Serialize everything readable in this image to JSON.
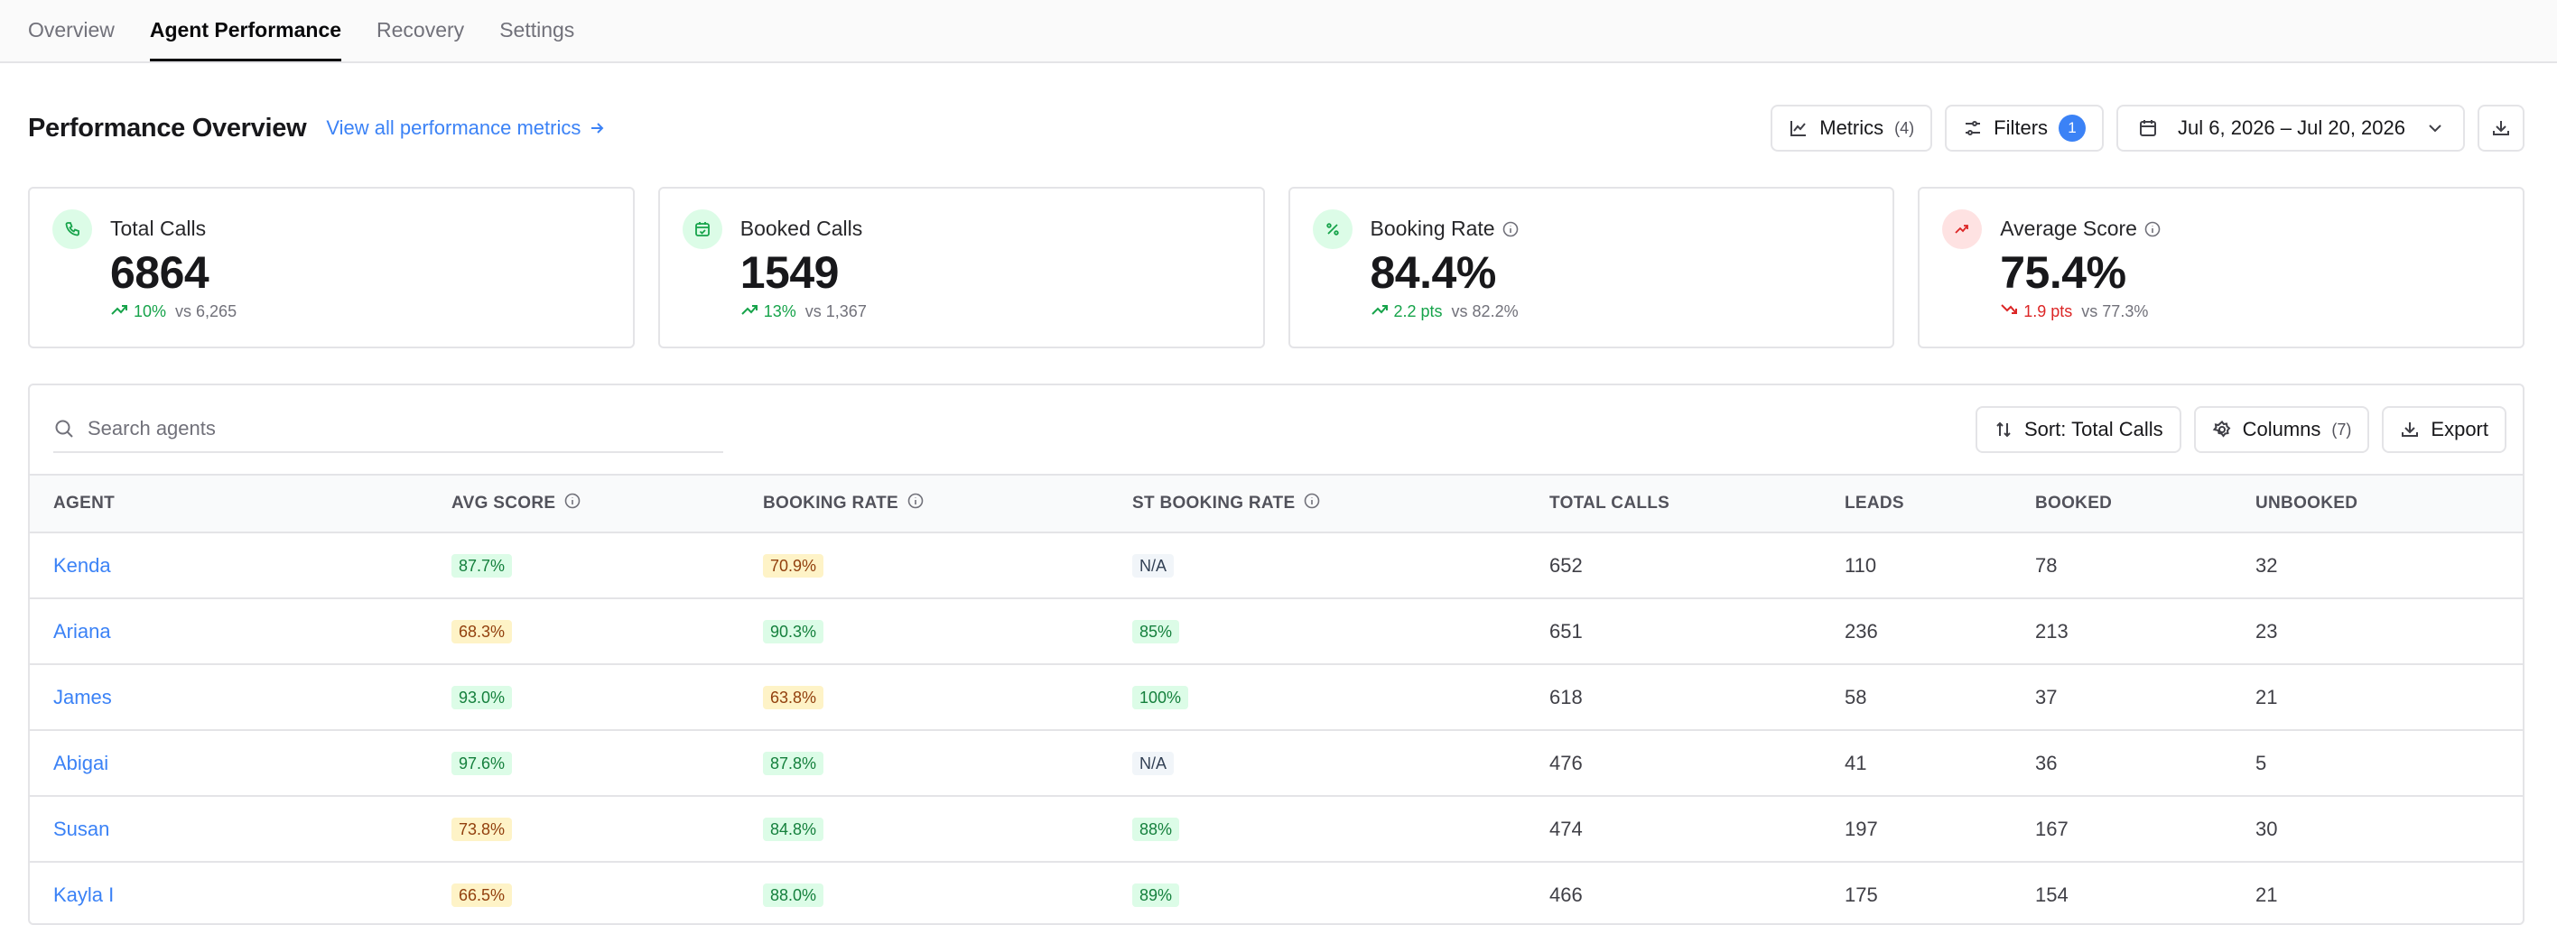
{
  "tabs": [
    {
      "label": "Overview",
      "active": false
    },
    {
      "label": "Agent Performance",
      "active": true
    },
    {
      "label": "Recovery",
      "active": false
    },
    {
      "label": "Settings",
      "active": false
    }
  ],
  "header": {
    "title": "Performance Overview",
    "view_all_link": "View all performance metrics",
    "metrics_label": "Metrics",
    "metrics_count": "(4)",
    "filters_label": "Filters",
    "filters_count": "1",
    "date_range": "Jul 6, 2026 – Jul 20, 2026"
  },
  "cards": [
    {
      "label": "Total Calls",
      "value": "6864",
      "delta": "10%",
      "compare": "vs 6,265",
      "trend": "up",
      "icon": "phone-icon",
      "has_info": false
    },
    {
      "label": "Booked Calls",
      "value": "1549",
      "delta": "13%",
      "compare": "vs 1,367",
      "trend": "up",
      "icon": "calendar-check-icon",
      "has_info": false
    },
    {
      "label": "Booking Rate",
      "value": "84.4%",
      "delta": "2.2 pts",
      "compare": "vs 82.2%",
      "trend": "up",
      "icon": "percent-icon",
      "has_info": true
    },
    {
      "label": "Average Score",
      "value": "75.4%",
      "delta": "1.9 pts",
      "compare": "vs 77.3%",
      "trend": "down",
      "icon": "trend-up-icon",
      "has_info": true
    }
  ],
  "table": {
    "search_placeholder": "Search agents",
    "sort_label": "Sort: Total Calls",
    "columns_label": "Columns",
    "columns_count": "(7)",
    "export_label": "Export",
    "headers": [
      "AGENT",
      "AVG SCORE",
      "BOOKING RATE",
      "ST BOOKING RATE",
      "TOTAL CALLS",
      "LEADS",
      "BOOKED",
      "UNBOOKED"
    ],
    "rows": [
      {
        "agent": "Kenda",
        "avg_score": "87.7%",
        "avg_score_tone": "green",
        "booking_rate": "70.9%",
        "booking_rate_tone": "yellow",
        "st_booking_rate": "N/A",
        "st_tone": "gray",
        "total_calls": "652",
        "leads": "110",
        "booked": "78",
        "unbooked": "32"
      },
      {
        "agent": "Ariana",
        "avg_score": "68.3%",
        "avg_score_tone": "yellow",
        "booking_rate": "90.3%",
        "booking_rate_tone": "green",
        "st_booking_rate": "85%",
        "st_tone": "green",
        "total_calls": "651",
        "leads": "236",
        "booked": "213",
        "unbooked": "23"
      },
      {
        "agent": "James",
        "avg_score": "93.0%",
        "avg_score_tone": "green",
        "booking_rate": "63.8%",
        "booking_rate_tone": "yellow",
        "st_booking_rate": "100%",
        "st_tone": "green",
        "total_calls": "618",
        "leads": "58",
        "booked": "37",
        "unbooked": "21"
      },
      {
        "agent": "Abigai",
        "avg_score": "97.6%",
        "avg_score_tone": "green",
        "booking_rate": "87.8%",
        "booking_rate_tone": "green",
        "st_booking_rate": "N/A",
        "st_tone": "gray",
        "total_calls": "476",
        "leads": "41",
        "booked": "36",
        "unbooked": "5"
      },
      {
        "agent": "Susan",
        "avg_score": "73.8%",
        "avg_score_tone": "yellow",
        "booking_rate": "84.8%",
        "booking_rate_tone": "green",
        "st_booking_rate": "88%",
        "st_tone": "green",
        "total_calls": "474",
        "leads": "197",
        "booked": "167",
        "unbooked": "30"
      },
      {
        "agent": "Kayla I",
        "avg_score": "66.5%",
        "avg_score_tone": "yellow",
        "booking_rate": "88.0%",
        "booking_rate_tone": "green",
        "st_booking_rate": "89%",
        "st_tone": "green",
        "total_calls": "466",
        "leads": "175",
        "booked": "154",
        "unbooked": "21"
      }
    ]
  },
  "colors": {
    "accent": "#3b82f6",
    "positive": "#16a34a",
    "negative": "#dc2626",
    "pill_green_bg": "#dcfce7",
    "pill_yellow_bg": "#fef3c7",
    "pill_gray_bg": "#f1f5f9"
  }
}
